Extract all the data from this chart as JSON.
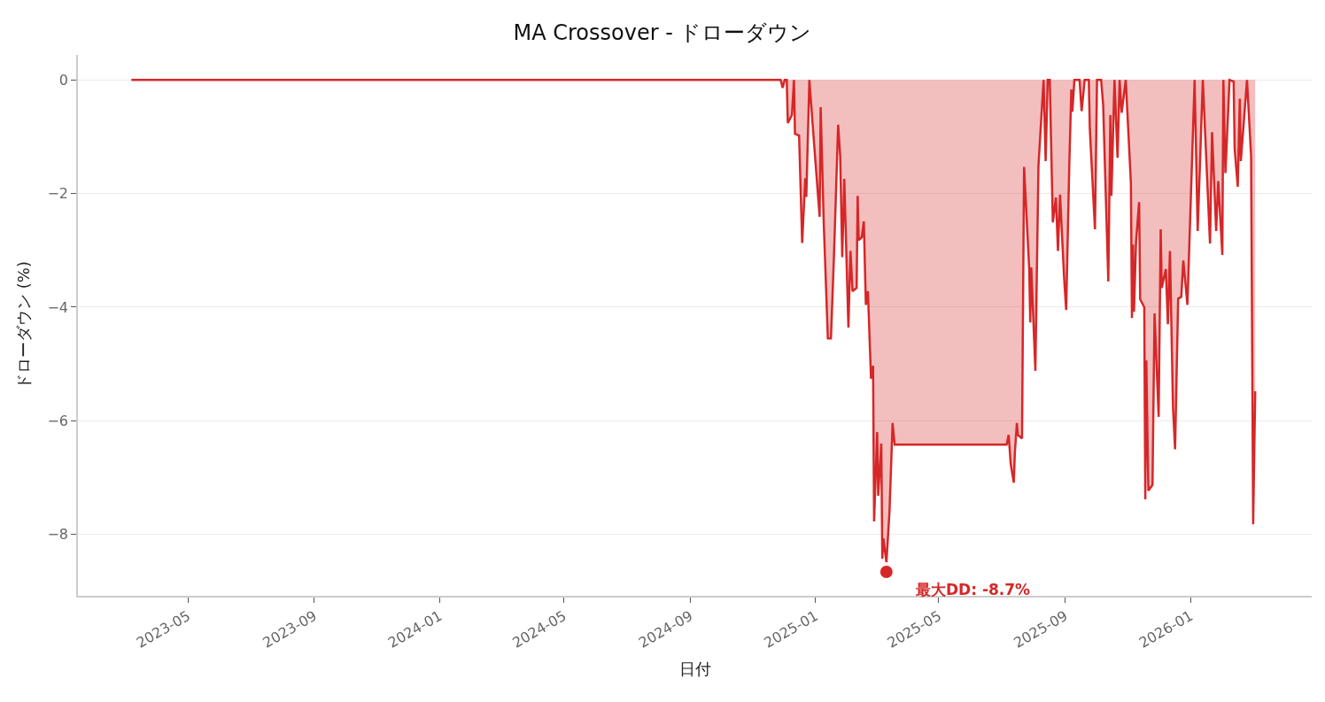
{
  "chart_data": {
    "type": "area",
    "title": "MA Crossover - ドローダウン",
    "xlabel": "日付",
    "ylabel": "ドローダウン (%)",
    "xlim": [
      "2023-01-14",
      "2026-04-29"
    ],
    "ylim": [
      -9.08,
      0.44
    ],
    "xticks": [
      {
        "value": "2023-05-01",
        "label": "2023-05"
      },
      {
        "value": "2023-09-01",
        "label": "2023-09"
      },
      {
        "value": "2024-01-01",
        "label": "2024-01"
      },
      {
        "value": "2024-05-01",
        "label": "2024-05"
      },
      {
        "value": "2024-09-01",
        "label": "2024-09"
      },
      {
        "value": "2025-01-01",
        "label": "2025-01"
      },
      {
        "value": "2025-05-01",
        "label": "2025-05"
      },
      {
        "value": "2025-09-01",
        "label": "2025-09"
      },
      {
        "value": "2026-01-01",
        "label": "2026-01"
      }
    ],
    "yticks": [
      0,
      -2,
      -4,
      -6,
      -8
    ],
    "grid": "y",
    "series": [
      {
        "color": "#d62728",
        "x": [
          "2023-03-07",
          "2024-11-28",
          "2024-11-30",
          "2024-12-02",
          "2024-12-04",
          "2024-12-05",
          "2024-12-09",
          "2024-12-11",
          "2024-12-12",
          "2024-12-16",
          "2024-12-19",
          "2024-12-22",
          "2024-12-23",
          "2024-12-26",
          "2024-12-30",
          "2025-01-05",
          "2025-01-06",
          "2025-01-09",
          "2025-01-13",
          "2025-01-16",
          "2025-01-19",
          "2025-01-23",
          "2025-01-25",
          "2025-01-27",
          "2025-01-29",
          "2025-02-02",
          "2025-02-04",
          "2025-02-06",
          "2025-02-10",
          "2025-02-11",
          "2025-02-12",
          "2025-02-15",
          "2025-02-17",
          "2025-02-19",
          "2025-02-21",
          "2025-02-24",
          "2025-02-26",
          "2025-02-27",
          "2025-03-02",
          "2025-03-03",
          "2025-03-06",
          "2025-03-07",
          "2025-03-08",
          "2025-03-11",
          "2025-03-14",
          "2025-03-17",
          "2025-03-19",
          "2025-07-06",
          "2025-07-08",
          "2025-07-10",
          "2025-07-13",
          "2025-07-14",
          "2025-07-16",
          "2025-07-17",
          "2025-07-21",
          "2025-07-23",
          "2025-07-28",
          "2025-07-29",
          "2025-07-30",
          "2025-08-03",
          "2025-08-06",
          "2025-08-11",
          "2025-08-13",
          "2025-08-15",
          "2025-08-17",
          "2025-08-20",
          "2025-08-23",
          "2025-08-25",
          "2025-08-27",
          "2025-08-31",
          "2025-09-02",
          "2025-09-05",
          "2025-09-07",
          "2025-09-08",
          "2025-09-10",
          "2025-09-15",
          "2025-09-17",
          "2025-09-20",
          "2025-09-24",
          "2025-09-25",
          "2025-09-30",
          "2025-10-02",
          "2025-10-06",
          "2025-10-08",
          "2025-10-13",
          "2025-10-15",
          "2025-10-16",
          "2025-10-19",
          "2025-10-22",
          "2025-10-24",
          "2025-10-26",
          "2025-10-30",
          "2025-11-04",
          "2025-11-05",
          "2025-11-06",
          "2025-11-07",
          "2025-11-09",
          "2025-11-12",
          "2025-11-13",
          "2025-11-17",
          "2025-11-18",
          "2025-11-19",
          "2025-11-21",
          "2025-11-25",
          "2025-11-27",
          "2025-12-01",
          "2025-12-03",
          "2025-12-04",
          "2025-12-08",
          "2025-12-10",
          "2025-12-12",
          "2025-12-15",
          "2025-12-17",
          "2025-12-20",
          "2025-12-23",
          "2025-12-25",
          "2025-12-29",
          "2026-01-05",
          "2026-01-08",
          "2026-01-13",
          "2026-01-20",
          "2026-01-22",
          "2026-01-26",
          "2026-01-28",
          "2026-02-01",
          "2026-02-02",
          "2026-02-04",
          "2026-02-08",
          "2026-02-12",
          "2026-02-13",
          "2026-02-16",
          "2026-02-18",
          "2026-02-19",
          "2026-02-25",
          "2026-03-01",
          "2026-03-03",
          "2026-03-05"
        ],
        "values": [
          0,
          0,
          -0.14,
          0,
          0,
          -0.76,
          -0.62,
          0,
          -0.95,
          -0.98,
          -2.87,
          -1.73,
          -2.06,
          0,
          -0.98,
          -2.41,
          -0.48,
          -2.52,
          -4.55,
          -4.55,
          -3.07,
          -0.79,
          -1.34,
          -3.12,
          -1.74,
          -4.36,
          -3.01,
          -3.72,
          -3.66,
          -2.04,
          -2.82,
          -2.77,
          -2.49,
          -3.96,
          -3.72,
          -5.26,
          -5.03,
          -7.77,
          -6.2,
          -7.32,
          -6.4,
          -8.43,
          -8.07,
          -8.49,
          -7.6,
          -6.04,
          -6.42,
          -6.42,
          -6.25,
          -6.76,
          -7.09,
          -6.57,
          -6.04,
          -6.25,
          -6.31,
          -1.53,
          -3.33,
          -4.27,
          -3.3,
          -5.12,
          -1.51,
          0,
          -1.43,
          0,
          0,
          -2.51,
          -2.07,
          -3.01,
          -2.02,
          -3.49,
          -4.05,
          -1.51,
          -0.17,
          -0.56,
          0,
          0,
          -0.55,
          0,
          0,
          -0.86,
          -2.63,
          0,
          0,
          -0.44,
          -3.55,
          -0.62,
          -2.04,
          0,
          -1.37,
          0,
          -0.58,
          0,
          -1.82,
          -4.19,
          -2.9,
          -4.08,
          -2.85,
          -2.15,
          -3.86,
          -4.0,
          -7.38,
          -4.94,
          -7.23,
          -7.13,
          -4.11,
          -5.93,
          -2.63,
          -3.66,
          -3.33,
          -4.3,
          -3.01,
          -5.78,
          -6.5,
          -3.85,
          -3.82,
          -3.18,
          -3.96,
          0,
          -2.66,
          0,
          -2.88,
          -0.92,
          -2.66,
          -1.78,
          -3.08,
          0,
          -1.64,
          0,
          -0.03,
          -1.21,
          -1.88,
          -0.33,
          -1.43,
          0,
          -1.34,
          -7.82,
          -5.48
        ]
      },
      {
        "type": "scatter",
        "color": "#d62728",
        "marker": "circle",
        "x": [
          "2025-03-11"
        ],
        "values": [
          -8.66
        ]
      }
    ],
    "annotations": [
      {
        "text": "最大DD: -8.7%",
        "x": "2025-03-11",
        "y": -8.66
      }
    ]
  }
}
